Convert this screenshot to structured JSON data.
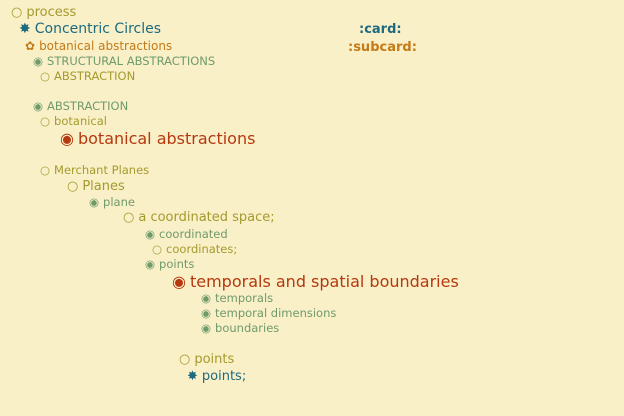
{
  "outline": {
    "process": {
      "icon": "○",
      "label": "process"
    },
    "concentric": {
      "icon": "✸",
      "label": "Concentric Circles",
      "tag": ":card:"
    },
    "botanical_top": {
      "icon": "✿",
      "label": "botanical abstractions",
      "tag": ":subcard:"
    },
    "structural": {
      "icon": "◉",
      "label": "STRUCTURAL ABSTRACTIONS"
    },
    "abstraction_a": {
      "icon": "○",
      "label": "ABSTRACTION"
    },
    "abstraction_b": {
      "icon": "◉",
      "label": "ABSTRACTION"
    },
    "botanical": {
      "icon": "○",
      "label": "botanical"
    },
    "botanical_big": {
      "icon": "◉",
      "label": "botanical abstractions"
    },
    "merchant": {
      "icon": "○",
      "label": "Merchant Planes"
    },
    "planes": {
      "icon": "○",
      "label": "Planes"
    },
    "plane": {
      "icon": "◉",
      "label": "plane"
    },
    "coord_space": {
      "icon": "○",
      "label": "a coordinated space;"
    },
    "coordinated": {
      "icon": "◉",
      "label": "coordinated"
    },
    "coordinates": {
      "icon": "○",
      "label": "coordinates;"
    },
    "points_a": {
      "icon": "◉",
      "label": "points"
    },
    "temporals_big": {
      "icon": "◉",
      "label": "temporals and spatial boundaries"
    },
    "temporals": {
      "icon": "◉",
      "label": "temporals"
    },
    "temporal_dims": {
      "icon": "◉",
      "label": "temporal dimensions"
    },
    "boundaries": {
      "icon": "◉",
      "label": "boundaries"
    },
    "points_b": {
      "icon": "○",
      "label": "points"
    },
    "points_c": {
      "icon": "✸",
      "label": "points;"
    }
  }
}
